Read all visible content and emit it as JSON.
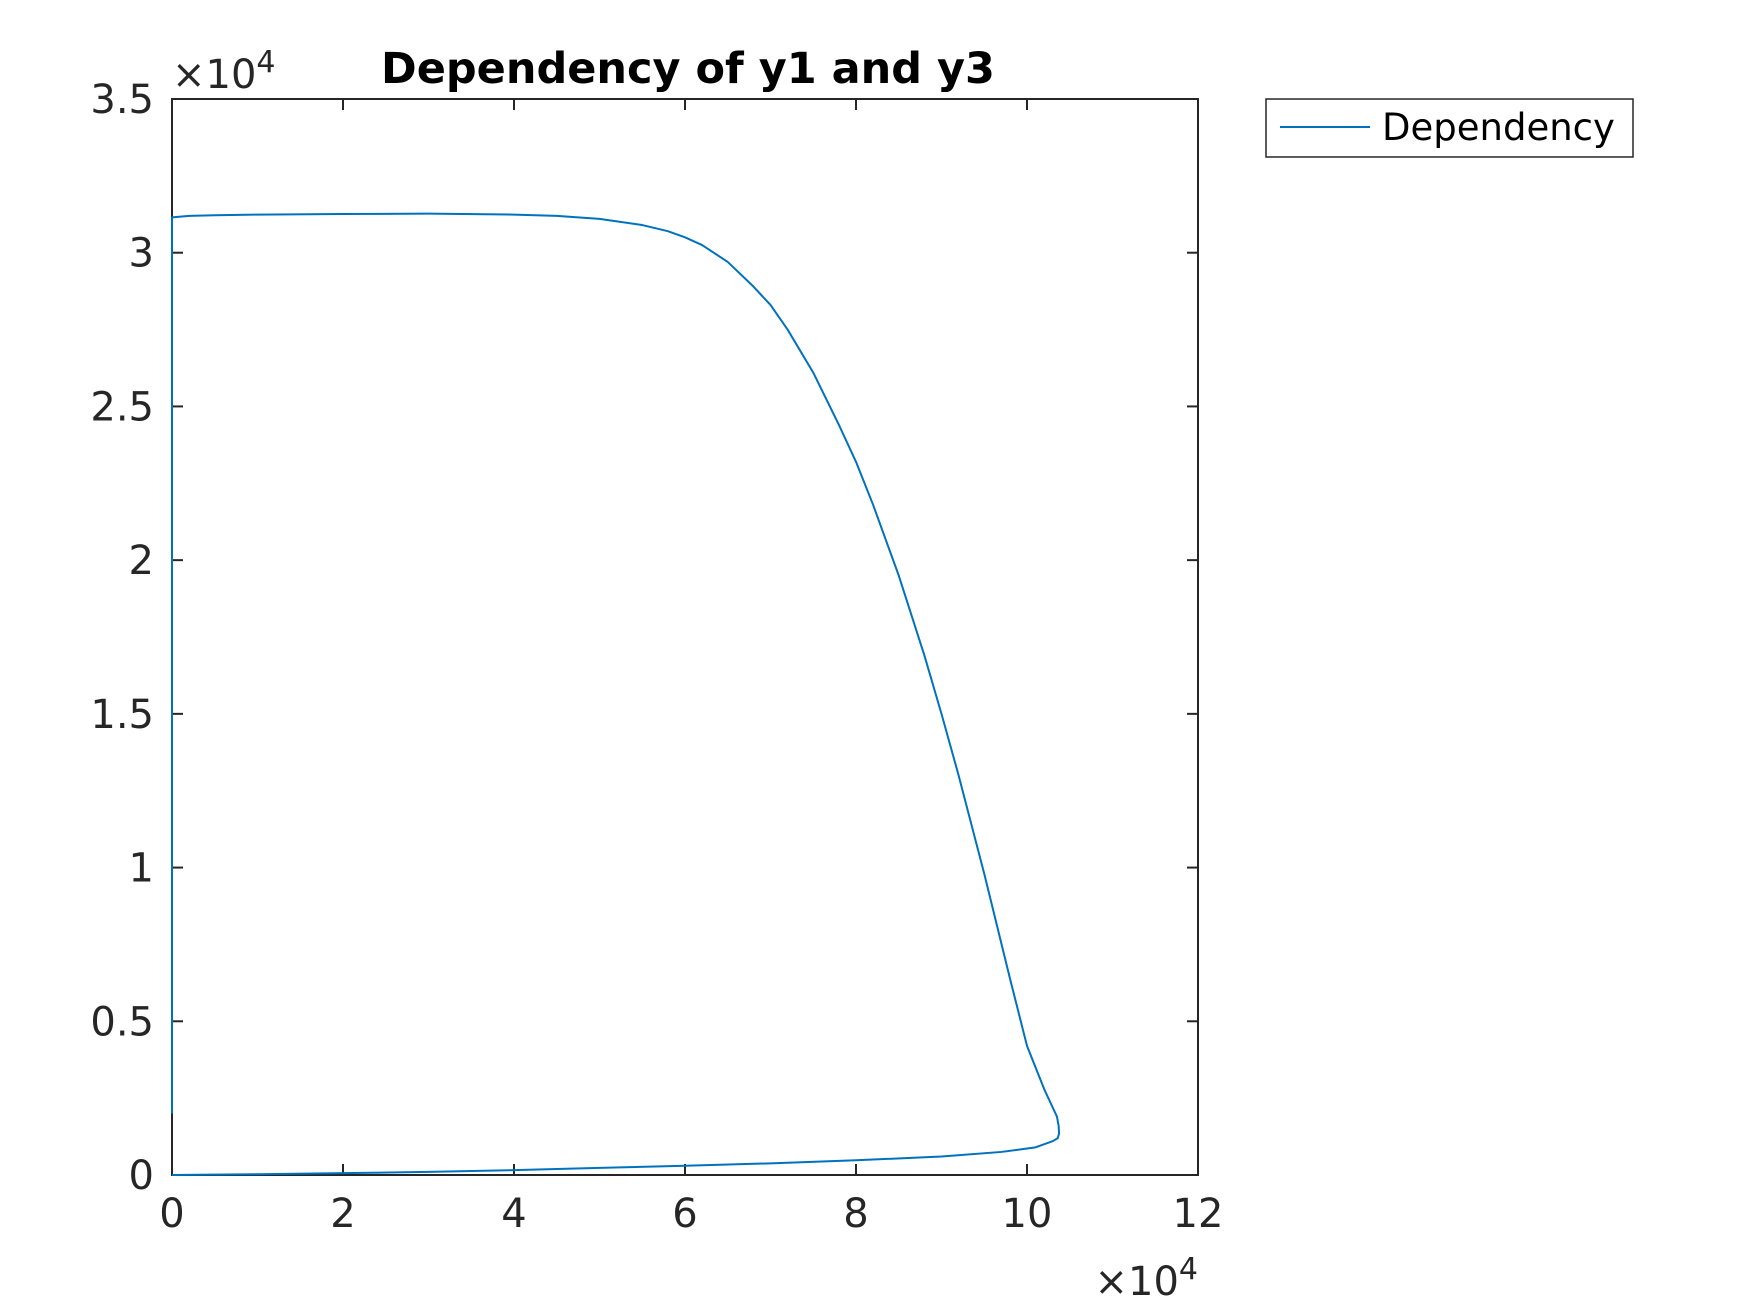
{
  "chart_data": {
    "type": "line",
    "title": "Dependency of y1 and y3",
    "xlabel": "",
    "ylabel": "",
    "xlim": [
      0,
      120000
    ],
    "ylim": [
      0,
      35000
    ],
    "x_ticks": [
      0,
      20000,
      40000,
      60000,
      80000,
      100000,
      120000
    ],
    "x_tick_labels": [
      "0",
      "2",
      "4",
      "6",
      "8",
      "10",
      "12"
    ],
    "y_ticks": [
      0,
      5000,
      10000,
      15000,
      20000,
      25000,
      30000,
      35000
    ],
    "y_tick_labels": [
      "0",
      "0.5",
      "1",
      "1.5",
      "2",
      "2.5",
      "3",
      "3.5"
    ],
    "x_exponent": {
      "base": "×10",
      "power": "4"
    },
    "y_exponent": {
      "base": "×10",
      "power": "4"
    },
    "grid": false,
    "legend_position": "outside-top-right",
    "series": [
      {
        "name": "Dependency",
        "color": "#0072BD",
        "points": [
          [
            0,
            2000
          ],
          [
            0,
            20000
          ],
          [
            0,
            31150
          ],
          [
            2000,
            31200
          ],
          [
            5000,
            31220
          ],
          [
            10000,
            31240
          ],
          [
            20000,
            31260
          ],
          [
            30000,
            31270
          ],
          [
            40000,
            31240
          ],
          [
            45000,
            31200
          ],
          [
            50000,
            31100
          ],
          [
            55000,
            30900
          ],
          [
            58000,
            30700
          ],
          [
            60000,
            30500
          ],
          [
            62000,
            30250
          ],
          [
            65000,
            29700
          ],
          [
            68000,
            28900
          ],
          [
            70000,
            28300
          ],
          [
            72000,
            27500
          ],
          [
            75000,
            26100
          ],
          [
            78000,
            24400
          ],
          [
            80000,
            23200
          ],
          [
            82000,
            21800
          ],
          [
            85000,
            19500
          ],
          [
            88000,
            16900
          ],
          [
            90000,
            15000
          ],
          [
            92000,
            13000
          ],
          [
            95000,
            9800
          ],
          [
            98000,
            6400
          ],
          [
            100000,
            4200
          ],
          [
            102000,
            2800
          ],
          [
            103000,
            2200
          ],
          [
            103500,
            1900
          ],
          [
            103700,
            1600
          ],
          [
            103750,
            1350
          ],
          [
            103600,
            1200
          ],
          [
            103000,
            1100
          ],
          [
            101000,
            900
          ],
          [
            97000,
            750
          ],
          [
            90000,
            600
          ],
          [
            80000,
            480
          ],
          [
            70000,
            380
          ],
          [
            60000,
            300
          ],
          [
            50000,
            230
          ],
          [
            40000,
            160
          ],
          [
            30000,
            100
          ],
          [
            20000,
            60
          ],
          [
            10000,
            25
          ],
          [
            3000,
            10
          ],
          [
            0,
            0
          ]
        ]
      }
    ]
  }
}
